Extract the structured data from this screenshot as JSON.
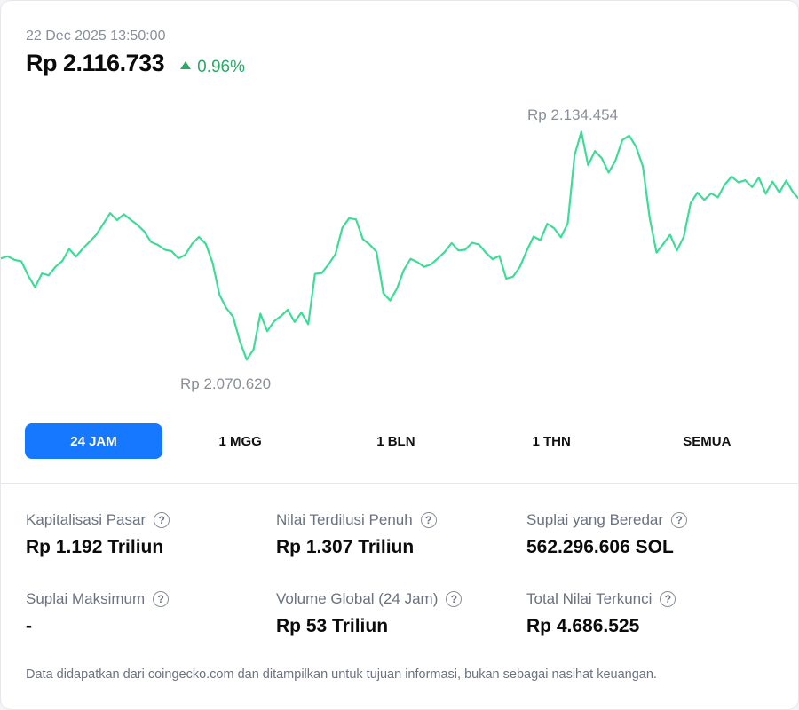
{
  "header": {
    "timestamp": "22 Dec 2025 13:50:00",
    "price": "Rp 2.116.733",
    "change": "0.96%",
    "change_direction": "up",
    "change_color": "#2aa866"
  },
  "chart": {
    "high_label": "Rp 2.134.454",
    "low_label": "Rp 2.070.620",
    "line_color": "#3ddc97",
    "series_range_hint": "24 JAM"
  },
  "chart_data": {
    "type": "line",
    "title": "",
    "xlabel": "",
    "ylabel": "",
    "x_range": [
      "22 Dec 2025 (24h window)"
    ],
    "ylim": [
      2070620,
      2134454
    ],
    "annotations": [
      "Rp 2.134.454",
      "Rp 2.070.620"
    ],
    "series": [
      {
        "values": [
          2099200,
          2099800,
          2098800,
          2098400,
          2094500,
          2091300,
          2095100,
          2094600,
          2096900,
          2098500,
          2101800,
          2099700,
          2101900,
          2103800,
          2105800,
          2108700,
          2111600,
          2109700,
          2111300,
          2109800,
          2108400,
          2106600,
          2103700,
          2102900,
          2101600,
          2101200,
          2099200,
          2100200,
          2103200,
          2105100,
          2103200,
          2098000,
          2089300,
          2085700,
          2083300,
          2076600,
          2071500,
          2074300,
          2084100,
          2079300,
          2082000,
          2083400,
          2085200,
          2081800,
          2084400,
          2081200,
          2095000,
          2095200,
          2097600,
          2100400,
          2107600,
          2110200,
          2109900,
          2104500,
          2103000,
          2101000,
          2089700,
          2087700,
          2091000,
          2096000,
          2099100,
          2098200,
          2096900,
          2097600,
          2099200,
          2101000,
          2103400,
          2101400,
          2101600,
          2103500,
          2103000,
          2100800,
          2099000,
          2099900,
          2093700,
          2094200,
          2096900,
          2101300,
          2105200,
          2104200,
          2108700,
          2107500,
          2105000,
          2108800,
          2127400,
          2133900,
          2124700,
          2128600,
          2126600,
          2122700,
          2126000,
          2131600,
          2132800,
          2129800,
          2124400,
          2110300,
          2100800,
          2103200,
          2105700,
          2101400,
          2105100,
          2114300,
          2117200,
          2115200,
          2117000,
          2115900,
          2119400,
          2121600,
          2120000,
          2120600,
          2118700,
          2121300,
          2116900,
          2120200,
          2117200,
          2120500,
          2117300,
          2115200
        ]
      }
    ],
    "grid": false,
    "legend": "none"
  },
  "ranges": {
    "tabs": [
      {
        "label": "24 JAM",
        "active": true
      },
      {
        "label": "1 MGG",
        "active": false
      },
      {
        "label": "1 BLN",
        "active": false
      },
      {
        "label": "1 THN",
        "active": false
      },
      {
        "label": "SEMUA",
        "active": false
      }
    ],
    "active_color": "#1677ff"
  },
  "stats": [
    {
      "label": "Kapitalisasi Pasar",
      "value": "Rp 1.192 Triliun"
    },
    {
      "label": "Nilai Terdilusi Penuh",
      "value": "Rp 1.307 Triliun"
    },
    {
      "label": "Suplai yang Beredar",
      "value": "562.296.606 SOL"
    },
    {
      "label": "Suplai Maksimum",
      "value": "-"
    },
    {
      "label": "Volume Global (24 Jam)",
      "value": "Rp 53 Triliun"
    },
    {
      "label": "Total Nilai Terkunci",
      "value": "Rp 4.686.525"
    }
  ],
  "help_icon_glyph": "?",
  "footer": {
    "disclaimer": "Data didapatkan dari coingecko.com dan ditampilkan untuk tujuan informasi, bukan sebagai nasihat keuangan."
  }
}
